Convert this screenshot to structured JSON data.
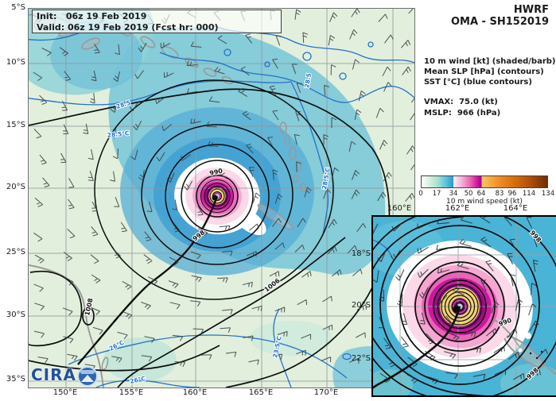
{
  "header": {
    "model": "HWRF",
    "storm": "OMA - SH152019"
  },
  "init_box": {
    "init": "Init:   06z 19 Feb 2019",
    "valid": "Valid: 06z 19 Feb 2019 (Fcst hr: 000)"
  },
  "legend": {
    "wind": "10 m wind [kt] (shaded/barb)",
    "slp": "Mean SLP [hPa] (contours)",
    "sst": "SST [°C] (blue contours)",
    "vmax": "VMAX:  75.0 (kt)",
    "mslp": "MSLP:  966 (hPa)"
  },
  "colorbar": {
    "label": "10 m wind speed (kt)",
    "ticks": [
      "0",
      "17",
      "34",
      "50",
      "64",
      "83",
      "96",
      "114",
      "134"
    ],
    "stops": [
      "#ffffff",
      "#a8e2cf",
      "#2f97cd",
      "#fdeef5",
      "#ec5fb4",
      "#a00386",
      "#fdc468",
      "#ee8c2a",
      "#6e2d05"
    ]
  },
  "main_map": {
    "lat_ticks": [
      "5°S",
      "10°S",
      "15°S",
      "20°S",
      "25°S",
      "30°S",
      "35°S"
    ],
    "lon_ticks": [
      "150°E",
      "155°E",
      "160°E",
      "165°E",
      "170°E"
    ],
    "slp_labels": [
      "990",
      "998",
      "1006",
      "1008"
    ],
    "sst_labels": [
      "28.5",
      "28.5°C",
      "28.5",
      "28.5°C",
      "26°C",
      "26°C",
      "23.5°C"
    ],
    "logo_text": "CIRA"
  },
  "inset_map": {
    "lon_ticks": [
      "160°E",
      "162°E",
      "164°E"
    ],
    "lat_ticks": [
      "18°S",
      "20°S",
      "22°S"
    ],
    "slp_labels": [
      "990",
      "998",
      "998"
    ]
  },
  "chart_data": {
    "type": "heatmap",
    "title": "HWRF OMA - SH152019",
    "subtitle": "10 m wind [kt] (shaded/barb), Mean SLP [hPa] (contours), SST [°C] (blue contours)",
    "init_time": "06z 19 Feb 2019",
    "valid_time": "06z 19 Feb 2019",
    "forecast_hour": 0,
    "vmax_kt": 75.0,
    "mslp_hpa": 966,
    "storm_center": {
      "lon_deg_e": 162,
      "lat_deg_s": 20
    },
    "main_axes": {
      "x_tick_values_deg_e": [
        150,
        155,
        160,
        165,
        170
      ],
      "y_tick_values_deg_s": [
        5,
        10,
        15,
        20,
        25,
        30,
        35
      ],
      "grid": true
    },
    "inset_axes": {
      "x_tick_values_deg_e": [
        160,
        162,
        164
      ],
      "y_tick_values_deg_s": [
        18,
        20,
        22
      ],
      "grid": true
    },
    "colorbar": {
      "label": "10 m wind speed (kt)",
      "tick_values": [
        0,
        17,
        34,
        50,
        64,
        83,
        96,
        114,
        134
      ]
    },
    "slp_contour_labels_hpa": [
      990,
      998,
      1006,
      1008
    ],
    "sst_contour_labels_c": [
      23.5,
      26,
      28.5
    ],
    "legend_position": "right"
  }
}
